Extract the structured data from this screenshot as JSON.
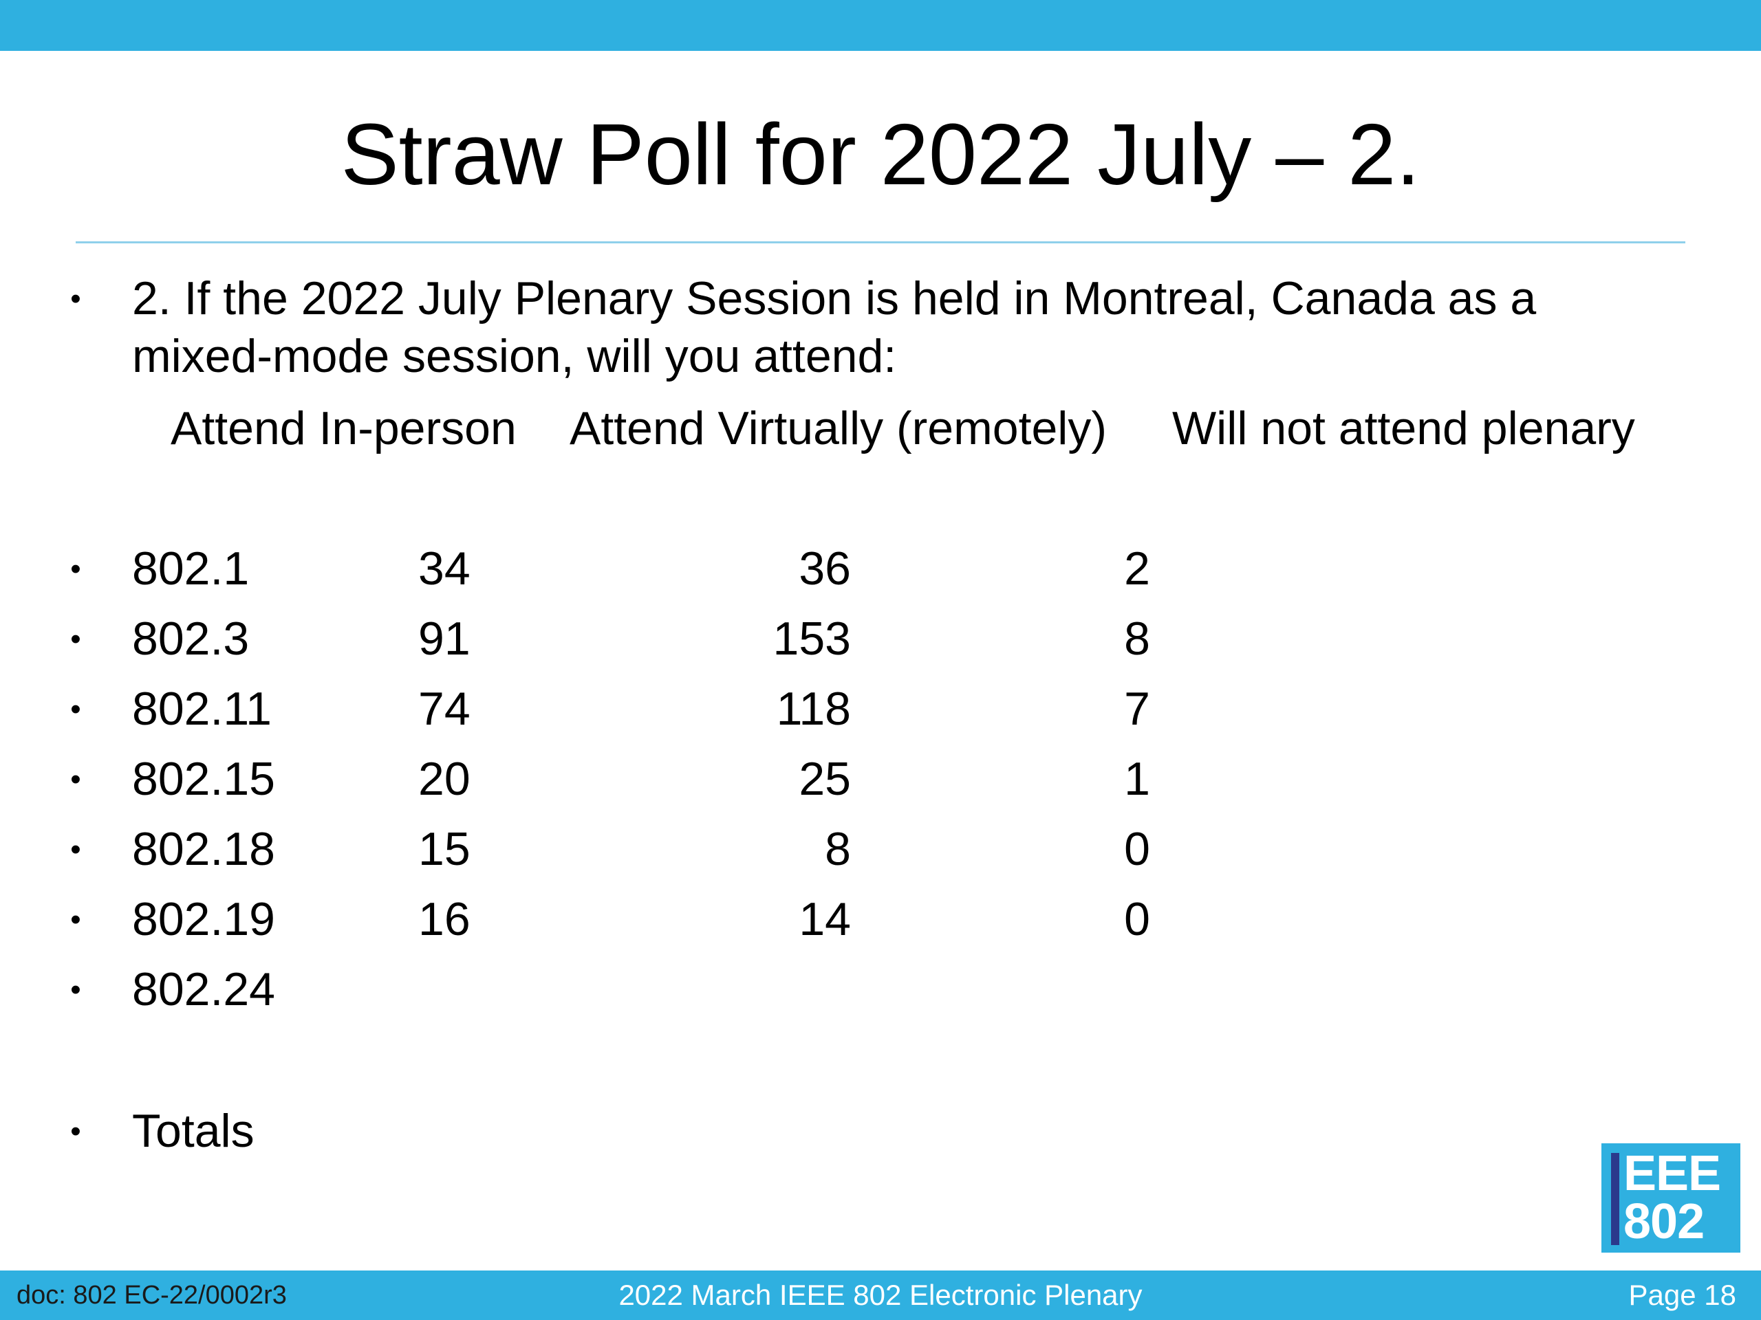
{
  "colors": {
    "accent_bar": "#2fb0e0",
    "title_rule": "#8fd0eb",
    "logo_bar": "#2b3a8c",
    "text": "#000000"
  },
  "slide": {
    "title": "Straw Poll for 2022 July – 2.",
    "bullet_glyph": "•",
    "question_line1": "2. If the 2022 July Plenary Session is held in Montreal, Canada as a",
    "question_line2": "mixed-mode session, will you attend:",
    "columns": {
      "in_person": "Attend In-person",
      "virtual": "Attend Virtually (remotely)",
      "not_attend": "Will not attend plenary"
    },
    "rows": [
      {
        "label": "802.1",
        "in_person": "34",
        "virtual": "36",
        "not_attend": "2"
      },
      {
        "label": "802.3",
        "in_person": "91",
        "virtual": "153",
        "not_attend": "8"
      },
      {
        "label": "802.11",
        "in_person": "74",
        "virtual": "118",
        "not_attend": "7"
      },
      {
        "label": "802.15",
        "in_person": "20",
        "virtual": "25",
        "not_attend": "1"
      },
      {
        "label": "802.18",
        "in_person": "15",
        "virtual": "8",
        "not_attend": "0"
      },
      {
        "label": "802.19",
        "in_person": "16",
        "virtual": "14",
        "not_attend": "0"
      },
      {
        "label": "802.24",
        "in_person": "",
        "virtual": "",
        "not_attend": ""
      }
    ],
    "totals_label": "Totals"
  },
  "logo": {
    "line1": "EEE",
    "line2": "802"
  },
  "footer": {
    "doc": "doc: 802 EC-22/0002r3",
    "center": "2022 March IEEE 802 Electronic Plenary",
    "page": "Page 18"
  }
}
